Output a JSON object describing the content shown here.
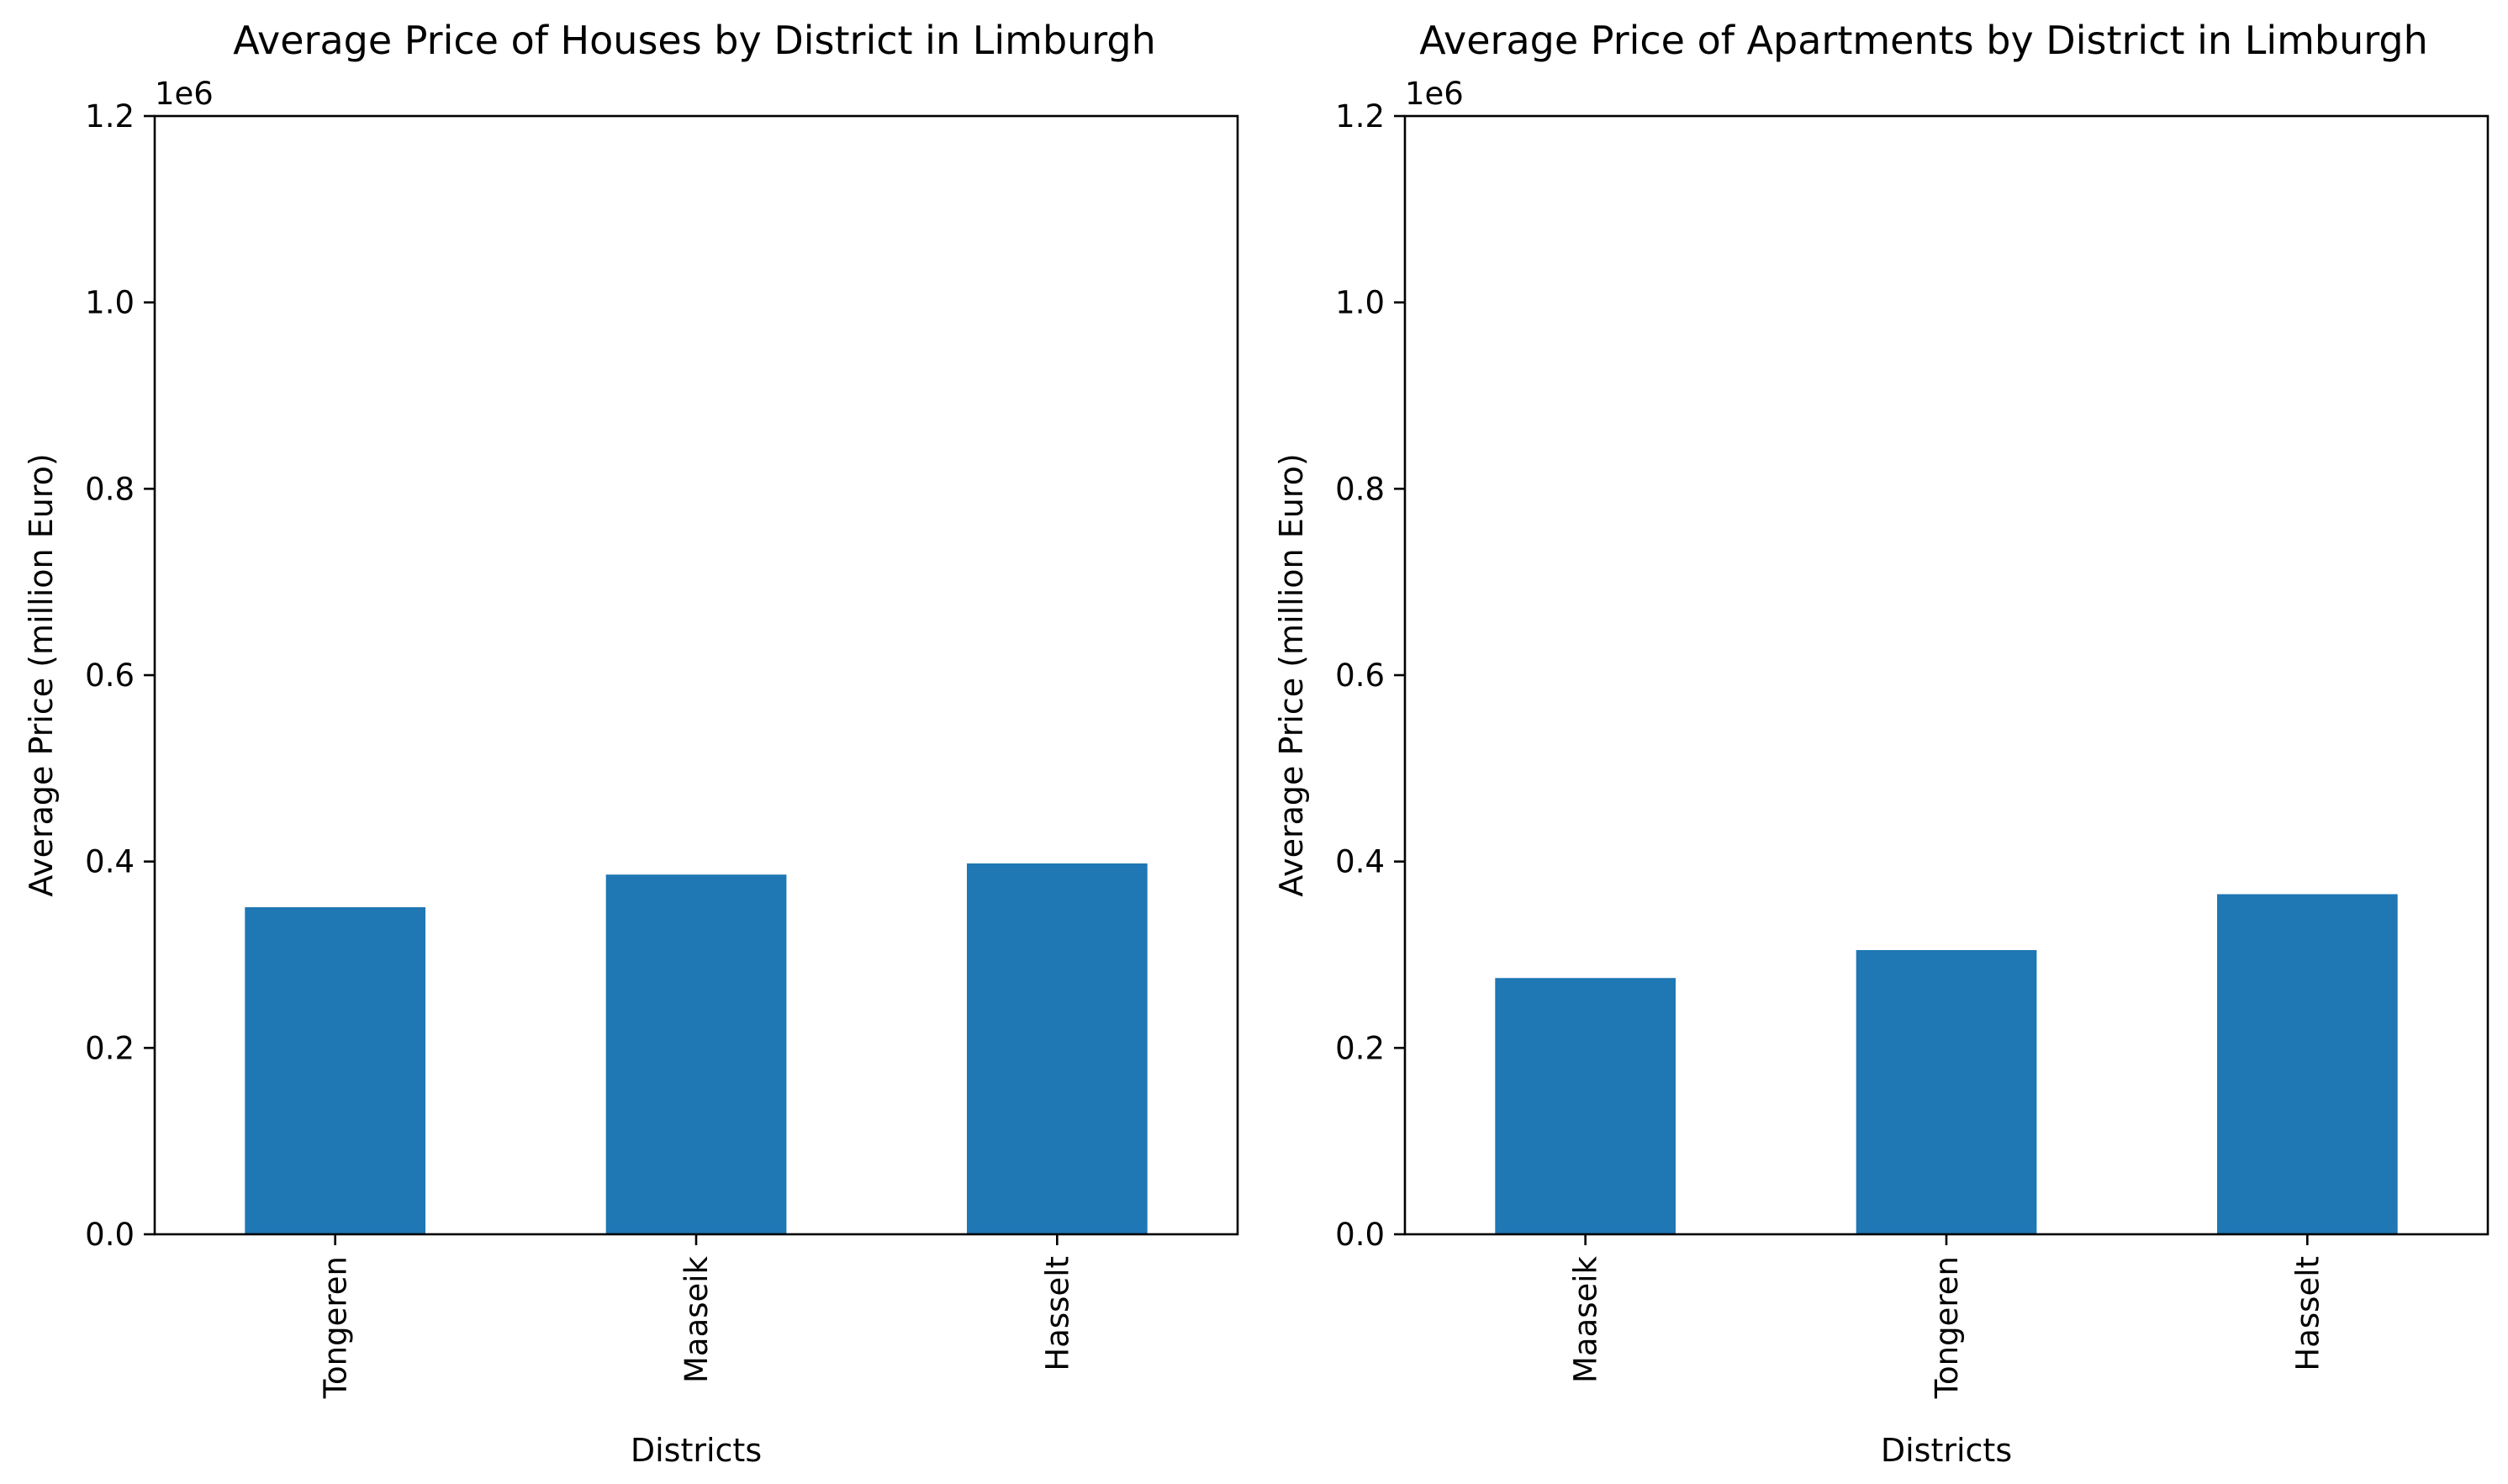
{
  "chart_data": [
    {
      "type": "bar",
      "title": "Average Price of Houses by District in Limburgh",
      "xlabel": "Districts",
      "ylabel": "Average Price (million Euro)",
      "y_offset_label": "1e6",
      "categories": [
        "Tongeren",
        "Maaseik",
        "Hasselt"
      ],
      "values": [
        351000,
        386000,
        398000
      ],
      "ylim": [
        0,
        1200000
      ],
      "yticks": [
        0,
        200000,
        400000,
        600000,
        800000,
        1000000,
        1200000
      ],
      "ytick_labels": [
        "0.0",
        "0.2",
        "0.4",
        "0.6",
        "0.8",
        "1.0",
        "1.2"
      ],
      "bar_color": "#1f77b4",
      "grid": false,
      "legend": "none"
    },
    {
      "type": "bar",
      "title": "Average Price of Apartments by District in Limburgh",
      "xlabel": "Districts",
      "ylabel": "Average Price (million Euro)",
      "y_offset_label": "1e6",
      "categories": [
        "Maaseik",
        "Tongeren",
        "Hasselt"
      ],
      "values": [
        275000,
        305000,
        365000
      ],
      "ylim": [
        0,
        1200000
      ],
      "yticks": [
        0,
        200000,
        400000,
        600000,
        800000,
        1000000,
        1200000
      ],
      "ytick_labels": [
        "0.0",
        "0.2",
        "0.4",
        "0.6",
        "0.8",
        "1.0",
        "1.2"
      ],
      "bar_color": "#1f77b4",
      "grid": false,
      "legend": "none"
    }
  ]
}
